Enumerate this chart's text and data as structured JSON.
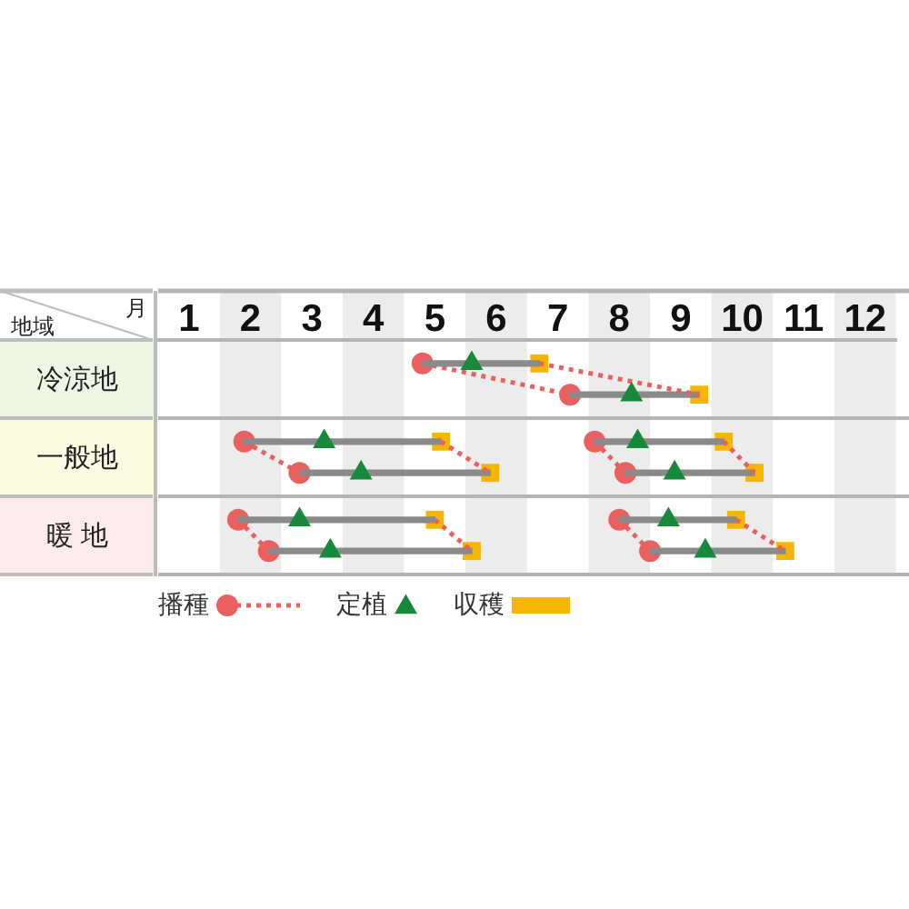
{
  "chart_data": {
    "type": "bar",
    "orientation": "horizontal",
    "xlabel": "月",
    "ylabel": "地域",
    "categories": [
      null,
      null,
      "冷涼地",
      null,
      null,
      null,
      null,
      "一般地",
      null,
      null,
      null,
      null,
      "暖 地",
      null,
      null
    ],
    "xlim": [
      0.5,
      12.5
    ],
    "xticks": [
      1,
      2,
      3,
      4,
      5,
      6,
      7,
      8,
      9,
      10,
      11,
      12
    ],
    "grid": "y",
    "legend": "bottom",
    "bands": [
      {
        "axis": "x",
        "from": 1.5,
        "to": 2.5,
        "color": "#ececec"
      },
      {
        "axis": "x",
        "from": 3.5,
        "to": 4.5,
        "color": "#ececec"
      },
      {
        "axis": "x",
        "from": 5.5,
        "to": 6.5,
        "color": "#ececec"
      },
      {
        "axis": "x",
        "from": 7.5,
        "to": 8.5,
        "color": "#ececec"
      },
      {
        "axis": "x",
        "from": 9.5,
        "to": 10.5,
        "color": "#ececec"
      },
      {
        "axis": "x",
        "from": 11.5,
        "to": 12.5,
        "color": "#ececec"
      }
    ],
    "series": [
      {
        "color": "#8a8a8a",
        "base": [
          null,
          4.8,
          null,
          7.2,
          null,
          null,
          1.9,
          null,
          2.8,
          null,
          null,
          1.8,
          null,
          2.3,
          null
        ],
        "values": [
          null,
          1.9,
          null,
          2.1,
          null,
          null,
          3.2,
          null,
          3.1,
          null,
          null,
          3.2,
          null,
          3.3,
          null
        ]
      },
      {
        "color": "#8a8a8a",
        "base": [
          null,
          null,
          null,
          null,
          null,
          null,
          7.6,
          null,
          8.1,
          null,
          null,
          8.0,
          null,
          8.5,
          null
        ],
        "values": [
          null,
          null,
          null,
          null,
          null,
          null,
          2.1,
          null,
          2.1,
          null,
          null,
          1.9,
          null,
          2.2,
          null
        ]
      },
      {
        "type": "line",
        "name": "播種",
        "color": "#e9605f",
        "marker": "circle",
        "line_style": "dotted",
        "values": [
          null,
          4.8,
          null,
          7.2,
          null,
          null,
          null,
          null,
          null,
          null,
          null,
          null,
          null,
          null,
          null
        ]
      },
      {
        "type": "line",
        "color": "#e9605f",
        "marker": "circle",
        "line_style": "dotted",
        "values": [
          null,
          null,
          null,
          null,
          null,
          null,
          1.9,
          null,
          2.8,
          null,
          null,
          null,
          null,
          null,
          null
        ]
      },
      {
        "type": "line",
        "color": "#e9605f",
        "marker": "circle",
        "line_style": "dotted",
        "values": [
          null,
          null,
          null,
          null,
          null,
          null,
          7.6,
          null,
          8.1,
          null,
          null,
          null,
          null,
          null,
          null
        ]
      },
      {
        "type": "line",
        "color": "#e9605f",
        "marker": "circle",
        "line_style": "dotted",
        "values": [
          null,
          null,
          null,
          null,
          null,
          null,
          null,
          null,
          null,
          null,
          null,
          1.8,
          null,
          2.3,
          null
        ]
      },
      {
        "type": "line",
        "color": "#e9605f",
        "marker": "circle",
        "line_style": "dotted",
        "values": [
          null,
          null,
          null,
          null,
          null,
          null,
          null,
          null,
          null,
          null,
          null,
          8.0,
          null,
          8.5,
          null
        ]
      },
      {
        "type": "scatter",
        "name": "定植",
        "color": "#17893b",
        "marker": "triangle",
        "values": [
          null,
          5.6,
          null,
          8.2,
          null,
          null,
          3.2,
          null,
          3.8,
          null,
          null,
          2.8,
          null,
          3.3,
          null
        ]
      },
      {
        "type": "scatter",
        "color": "#17893b",
        "marker": "triangle",
        "values": [
          null,
          null,
          null,
          null,
          null,
          null,
          8.3,
          null,
          8.9,
          null,
          null,
          8.8,
          null,
          9.4,
          null
        ]
      },
      {
        "type": "scatter",
        "name": "収穫",
        "color": "#f6b500",
        "marker": "square",
        "values": [
          null,
          6.7,
          null,
          9.3,
          null,
          null,
          5.1,
          null,
          5.9,
          null,
          null,
          5.0,
          null,
          5.6,
          null
        ]
      },
      {
        "type": "scatter",
        "color": "#f6b500",
        "marker": "square",
        "values": [
          null,
          null,
          null,
          null,
          null,
          null,
          9.7,
          null,
          10.2,
          null,
          null,
          9.9,
          null,
          10.7,
          null
        ]
      },
      {
        "type": "line",
        "color": "#e9605f",
        "marker": "none",
        "line_style": "dotted",
        "values": [
          null,
          6.7,
          null,
          9.3,
          null,
          null,
          null,
          null,
          null,
          null,
          null,
          null,
          null,
          null,
          null
        ]
      },
      {
        "type": "line",
        "color": "#e9605f",
        "marker": "none",
        "line_style": "dotted",
        "values": [
          null,
          null,
          null,
          null,
          null,
          null,
          5.1,
          null,
          5.9,
          null,
          null,
          null,
          null,
          null,
          null
        ]
      },
      {
        "type": "line",
        "color": "#e9605f",
        "marker": "none",
        "line_style": "dotted",
        "values": [
          null,
          null,
          null,
          null,
          null,
          null,
          9.7,
          null,
          10.2,
          null,
          null,
          null,
          null,
          null,
          null
        ]
      },
      {
        "type": "line",
        "color": "#e9605f",
        "marker": "none",
        "line_style": "dotted",
        "values": [
          null,
          null,
          null,
          null,
          null,
          null,
          null,
          null,
          null,
          null,
          null,
          5.0,
          null,
          5.6,
          null
        ]
      },
      {
        "type": "line",
        "color": "#e9605f",
        "marker": "none",
        "line_style": "dotted",
        "values": [
          null,
          null,
          null,
          null,
          null,
          null,
          null,
          null,
          null,
          null,
          null,
          9.9,
          null,
          10.7,
          null
        ]
      }
    ]
  }
}
